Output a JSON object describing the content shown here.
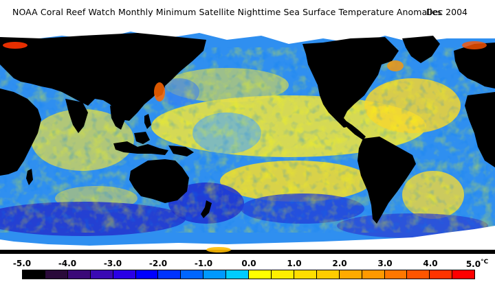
{
  "header": {
    "title": "NOAA Coral Reef Watch Monthly Minimum Satellite Nighttime Sea Surface Temperature Anomalies",
    "date": "Dec 2004"
  },
  "legend": {
    "tick_labels": [
      "-5.0",
      "-4.0",
      "-3.0",
      "-2.0",
      "-1.0",
      "0.0",
      "1.0",
      "2.0",
      "3.0",
      "4.0",
      "5.0"
    ],
    "unit": "°C",
    "colors": [
      "#000000",
      "#2a0a3a",
      "#3b0a78",
      "#3a0ab4",
      "#2a00e6",
      "#0000ff",
      "#0033ff",
      "#0066ff",
      "#0099ff",
      "#00ccff",
      "#ffff00",
      "#ffee00",
      "#ffdd00",
      "#ffcc00",
      "#ffaa00",
      "#ff9900",
      "#ff7700",
      "#ff5500",
      "#ff3300",
      "#ff0000"
    ]
  },
  "map_colors": {
    "land": "#000000",
    "ice": "#ffffff",
    "ocean_base": "#2f8ff0"
  }
}
